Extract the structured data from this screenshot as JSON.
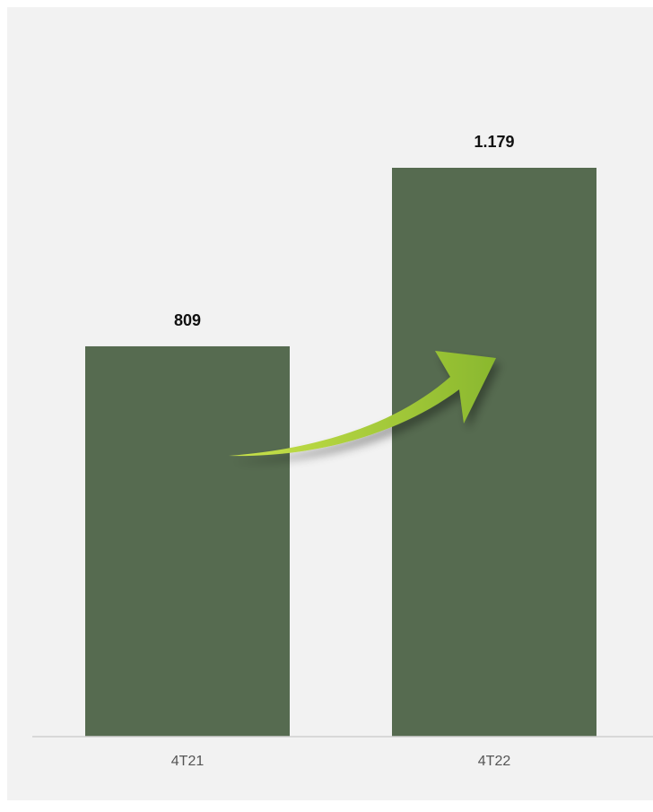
{
  "colors": {
    "panel": "#f2f2f2",
    "bar": "#566b50",
    "axis": "#d0d0d0",
    "arrow_light": "#c9e24a",
    "arrow_dark": "#8ab82e"
  },
  "arrow_icon": "growth-arrow-icon",
  "chart_data": {
    "type": "bar",
    "title": "",
    "xlabel": "",
    "ylabel": "",
    "categories": [
      "4T21",
      "4T22"
    ],
    "values": [
      809,
      1179
    ],
    "value_labels": [
      "809",
      "1.179"
    ],
    "ylim": [
      0,
      1250
    ],
    "grid": false,
    "legend": "none"
  }
}
